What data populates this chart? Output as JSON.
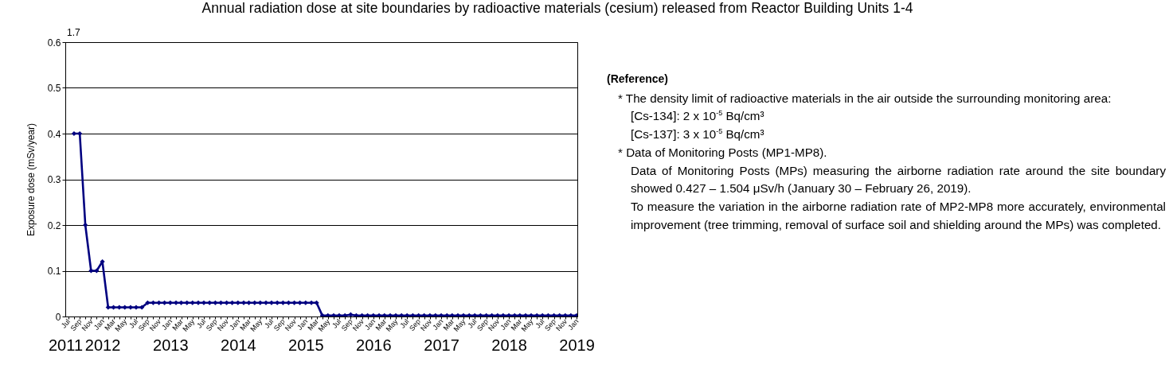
{
  "chart_data": [
    {
      "type": "line",
      "title": "Annual radiation dose at site boundaries by radioactive materials (cesium) released from Reactor Building Units 1-4",
      "ylabel": "Exposure dose (mSv/year)",
      "x": [
        "2011-08",
        "2011-09",
        "2011-10",
        "2011-11",
        "2011-12",
        "2012-01",
        "2012-02",
        "2012-03",
        "2012-04",
        "2012-05",
        "2012-06",
        "2012-07",
        "2012-08",
        "2012-09",
        "2012-10",
        "2012-11",
        "2012-12",
        "2013-01",
        "2013-02",
        "2013-03",
        "2013-04",
        "2013-05",
        "2013-06",
        "2013-07",
        "2013-08",
        "2013-09",
        "2013-10",
        "2013-11",
        "2013-12",
        "2014-01",
        "2014-02",
        "2014-03",
        "2014-04",
        "2014-05",
        "2014-06",
        "2014-07",
        "2014-08",
        "2014-09",
        "2014-10",
        "2014-11",
        "2014-12",
        "2015-01",
        "2015-02",
        "2015-03",
        "2015-04",
        "2015-05",
        "2015-06",
        "2015-07",
        "2015-08",
        "2015-09",
        "2015-10",
        "2015-11",
        "2015-12",
        "2016-01",
        "2016-02",
        "2016-03",
        "2016-04",
        "2016-05",
        "2016-06",
        "2016-07",
        "2016-08",
        "2016-09",
        "2016-10",
        "2016-11",
        "2016-12",
        "2017-01",
        "2017-02",
        "2017-03",
        "2017-04",
        "2017-05",
        "2017-06",
        "2017-07",
        "2017-08",
        "2017-09",
        "2017-10",
        "2017-11",
        "2017-12",
        "2018-01",
        "2018-02",
        "2018-03",
        "2018-04",
        "2018-05",
        "2018-06",
        "2018-07",
        "2018-08",
        "2018-09",
        "2018-10",
        "2018-11",
        "2018-12",
        "2019-01"
      ],
      "series": [
        {
          "color": "#000080",
          "values": [
            0.4,
            0.4,
            0.2,
            0.1,
            0.1,
            0.12,
            0.02,
            0.02,
            0.02,
            0.02,
            0.02,
            0.02,
            0.02,
            0.03,
            0.03,
            0.03,
            0.03,
            0.03,
            0.03,
            0.03,
            0.03,
            0.03,
            0.03,
            0.03,
            0.03,
            0.03,
            0.03,
            0.03,
            0.03,
            0.03,
            0.03,
            0.03,
            0.03,
            0.03,
            0.03,
            0.03,
            0.03,
            0.03,
            0.03,
            0.03,
            0.03,
            0.03,
            0.03,
            0.03,
            0.002,
            0.002,
            0.002,
            0.002,
            0.002,
            0.004,
            0.002,
            0.002,
            0.002,
            0.002,
            0.002,
            0.002,
            0.002,
            0.002,
            0.002,
            0.002,
            0.002,
            0.002,
            0.002,
            0.002,
            0.002,
            0.002,
            0.002,
            0.002,
            0.002,
            0.002,
            0.002,
            0.002,
            0.002,
            0.002,
            0.002,
            0.002,
            0.002,
            0.002,
            0.002,
            0.002,
            0.002,
            0.002,
            0.002,
            0.002,
            0.002,
            0.002,
            0.002,
            0.002,
            0.002,
            0.002
          ]
        }
      ],
      "xlim": [
        "2011-06-15",
        "2019-01-05"
      ],
      "xticks": [
        {
          "value": "2011-07",
          "label": "Jul"
        },
        {
          "value": "2011-08",
          "label": null
        },
        {
          "value": "2011-09",
          "label": "Sep"
        },
        {
          "value": "2011-10",
          "label": null
        },
        {
          "value": "2011-11",
          "label": "Nov"
        },
        {
          "value": "2011-12",
          "label": null
        },
        {
          "value": "2012-01",
          "label": "Jan"
        },
        {
          "value": "2012-02",
          "label": null
        },
        {
          "value": "2012-03",
          "label": "Mar"
        },
        {
          "value": "2012-04",
          "label": null
        },
        {
          "value": "2012-05",
          "label": "May"
        },
        {
          "value": "2012-06",
          "label": null
        },
        {
          "value": "2012-07",
          "label": "Jul"
        },
        {
          "value": "2012-08",
          "label": null
        },
        {
          "value": "2012-09",
          "label": "Sep"
        },
        {
          "value": "2012-10",
          "label": null
        },
        {
          "value": "2012-11",
          "label": "Nov"
        },
        {
          "value": "2012-12",
          "label": null
        },
        {
          "value": "2013-01",
          "label": "Jan"
        },
        {
          "value": "2013-02",
          "label": null
        },
        {
          "value": "2013-03",
          "label": "Mar"
        },
        {
          "value": "2013-04",
          "label": null
        },
        {
          "value": "2013-05",
          "label": "May"
        },
        {
          "value": "2013-06",
          "label": null
        },
        {
          "value": "2013-07",
          "label": "Jul"
        },
        {
          "value": "2013-08",
          "label": null
        },
        {
          "value": "2013-09",
          "label": "Sep"
        },
        {
          "value": "2013-10",
          "label": null
        },
        {
          "value": "2013-11",
          "label": "Nov"
        },
        {
          "value": "2013-12",
          "label": null
        },
        {
          "value": "2014-01",
          "label": "Jan"
        },
        {
          "value": "2014-02",
          "label": null
        },
        {
          "value": "2014-03",
          "label": "Mar"
        },
        {
          "value": "2014-04",
          "label": null
        },
        {
          "value": "2014-05",
          "label": "May"
        },
        {
          "value": "2014-06",
          "label": null
        },
        {
          "value": "2014-07",
          "label": "Jul"
        },
        {
          "value": "2014-08",
          "label": null
        },
        {
          "value": "2014-09",
          "label": "Sep"
        },
        {
          "value": "2014-10",
          "label": null
        },
        {
          "value": "2014-11",
          "label": "Nov"
        },
        {
          "value": "2014-12",
          "label": null
        },
        {
          "value": "2015-01",
          "label": "Jan"
        },
        {
          "value": "2015-02",
          "label": null
        },
        {
          "value": "2015-03",
          "label": "Mar"
        },
        {
          "value": "2015-04",
          "label": null
        },
        {
          "value": "2015-05",
          "label": "May"
        },
        {
          "value": "2015-06",
          "label": null
        },
        {
          "value": "2015-07",
          "label": "Jul"
        },
        {
          "value": "2015-08",
          "label": null
        },
        {
          "value": "2015-09",
          "label": "Sep"
        },
        {
          "value": "2015-10",
          "label": null
        },
        {
          "value": "2015-11",
          "label": "Nov"
        },
        {
          "value": "2015-12",
          "label": null
        },
        {
          "value": "2016-01",
          "label": "Jan"
        },
        {
          "value": "2016-02",
          "label": null
        },
        {
          "value": "2016-03",
          "label": "Mar"
        },
        {
          "value": "2016-04",
          "label": null
        },
        {
          "value": "2016-05",
          "label": "May"
        },
        {
          "value": "2016-06",
          "label": null
        },
        {
          "value": "2016-07",
          "label": "Jul"
        },
        {
          "value": "2016-08",
          "label": null
        },
        {
          "value": "2016-09",
          "label": "Sep"
        },
        {
          "value": "2016-10",
          "label": null
        },
        {
          "value": "2016-11",
          "label": "Nov"
        },
        {
          "value": "2016-12",
          "label": null
        },
        {
          "value": "2017-01",
          "label": "Jan"
        },
        {
          "value": "2017-02",
          "label": null
        },
        {
          "value": "2017-03",
          "label": "Mar"
        },
        {
          "value": "2017-04",
          "label": null
        },
        {
          "value": "2017-05",
          "label": "May"
        },
        {
          "value": "2017-06",
          "label": null
        },
        {
          "value": "2017-07",
          "label": "Jul"
        },
        {
          "value": "2017-08",
          "label": null
        },
        {
          "value": "2017-09",
          "label": "Sep"
        },
        {
          "value": "2017-10",
          "label": null
        },
        {
          "value": "2017-11",
          "label": "Nov"
        },
        {
          "value": "2017-12",
          "label": null
        },
        {
          "value": "2018-01",
          "label": "Jan"
        },
        {
          "value": "2018-02",
          "label": null
        },
        {
          "value": "2018-03",
          "label": "Mar"
        },
        {
          "value": "2018-04",
          "label": null
        },
        {
          "value": "2018-05",
          "label": "May"
        },
        {
          "value": "2018-06",
          "label": null
        },
        {
          "value": "2018-07",
          "label": "Jul"
        },
        {
          "value": "2018-08",
          "label": null
        },
        {
          "value": "2018-09",
          "label": "Sep"
        },
        {
          "value": "2018-10",
          "label": null
        },
        {
          "value": "2018-11",
          "label": "Nov"
        },
        {
          "value": "2018-12",
          "label": null
        },
        {
          "value": "2019-01",
          "label": "Jan"
        }
      ],
      "x2lim": [
        "2011-06-15",
        "2019-01-05"
      ],
      "x2ticks": [
        {
          "value": "2011-06-15",
          "label": "2011"
        },
        {
          "value": "2012-01",
          "label": "2012"
        },
        {
          "value": "2013-01",
          "label": "2013"
        },
        {
          "value": "2014-01",
          "label": "2014"
        },
        {
          "value": "2015-01",
          "label": "2015"
        },
        {
          "value": "2016-01",
          "label": "2016"
        },
        {
          "value": "2017-01",
          "label": "2017"
        },
        {
          "value": "2018-01",
          "label": "2018"
        },
        {
          "value": "2019-01",
          "label": "2019"
        }
      ],
      "ylim": [
        0,
        0.6
      ],
      "yticks": [
        0,
        0.1,
        0.2,
        0.3,
        0.4,
        0.5,
        0.6
      ],
      "grid": "y",
      "marker": "diamond",
      "line_style": "solid",
      "annotations": [
        "1.7"
      ]
    },
    {
      "type": "other",
      "title": "(Reference)",
      "annotations": [
        "* The density limit of radioactive materials in the air outside the surrounding monitoring area:",
        "[Cs-134]: 2 x 10$^{-5}$ Bq/cm³",
        "[Cs-137]: 3 x 10$^{-5}$ Bq/cm³",
        "* Data of Monitoring Posts (MP1-MP8).",
        "Data of Monitoring Posts (MPs) measuring the airborne radiation rate around the site boundary showed 0.427 – 1.504 μSv/h (January 30 – February 26, 2019).",
        "To measure the variation in the airborne radiation rate of MP2-MP8 more accurately, environmental improvement (tree trimming, removal of surface soil and shielding around the MPs) was completed."
      ]
    }
  ]
}
